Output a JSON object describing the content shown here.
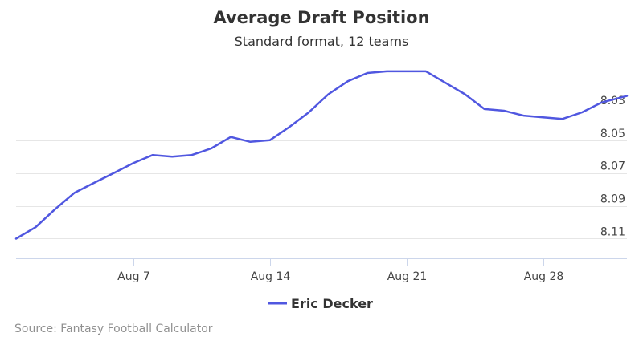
{
  "chart_data": {
    "type": "line",
    "title": "Average Draft Position",
    "subtitle": "Standard format, 12 teams",
    "credits": "Source: Fantasy Football Calculator",
    "xlabel": "",
    "ylabel": "",
    "x_tick_labels": [
      {
        "day": 7,
        "label": "Aug 7"
      },
      {
        "day": 14,
        "label": "Aug 14"
      },
      {
        "day": 21,
        "label": "Aug 21"
      },
      {
        "day": 28,
        "label": "Aug 28"
      }
    ],
    "y_ticks": [
      8.03,
      8.05,
      8.07,
      8.09,
      8.11
    ],
    "y_tick_labels": [
      "8.03",
      "8.05",
      "8.07",
      "8.09",
      "8.11"
    ],
    "ylim": [
      8.01,
      8.122
    ],
    "y_reversed": true,
    "xlim": [
      1.0,
      32.3
    ],
    "grid": "horizontal",
    "legend_position": "bottom-center",
    "series": [
      {
        "name": "Eric Decker",
        "color": "#5057e0",
        "points": [
          {
            "x": 1,
            "y": 8.11
          },
          {
            "x": 2,
            "y": 8.103
          },
          {
            "x": 3,
            "y": 8.092
          },
          {
            "x": 4,
            "y": 8.082
          },
          {
            "x": 5,
            "y": 8.076
          },
          {
            "x": 6,
            "y": 8.07
          },
          {
            "x": 7,
            "y": 8.064
          },
          {
            "x": 8,
            "y": 8.059
          },
          {
            "x": 9,
            "y": 8.06
          },
          {
            "x": 10,
            "y": 8.059
          },
          {
            "x": 11,
            "y": 8.055
          },
          {
            "x": 12,
            "y": 8.048
          },
          {
            "x": 13,
            "y": 8.051
          },
          {
            "x": 14,
            "y": 8.05
          },
          {
            "x": 15,
            "y": 8.042
          },
          {
            "x": 16,
            "y": 8.033
          },
          {
            "x": 17,
            "y": 8.022
          },
          {
            "x": 18,
            "y": 8.014
          },
          {
            "x": 19,
            "y": 8.009
          },
          {
            "x": 20,
            "y": 8.008
          },
          {
            "x": 21,
            "y": 8.008
          },
          {
            "x": 22,
            "y": 8.008
          },
          {
            "x": 23,
            "y": 8.015
          },
          {
            "x": 24,
            "y": 8.022
          },
          {
            "x": 25,
            "y": 8.031
          },
          {
            "x": 26,
            "y": 8.032
          },
          {
            "x": 27,
            "y": 8.035
          },
          {
            "x": 28,
            "y": 8.036
          },
          {
            "x": 29,
            "y": 8.037
          },
          {
            "x": 30,
            "y": 8.033
          },
          {
            "x": 31,
            "y": 8.027
          },
          {
            "x": 32.3,
            "y": 8.023
          }
        ]
      }
    ]
  }
}
